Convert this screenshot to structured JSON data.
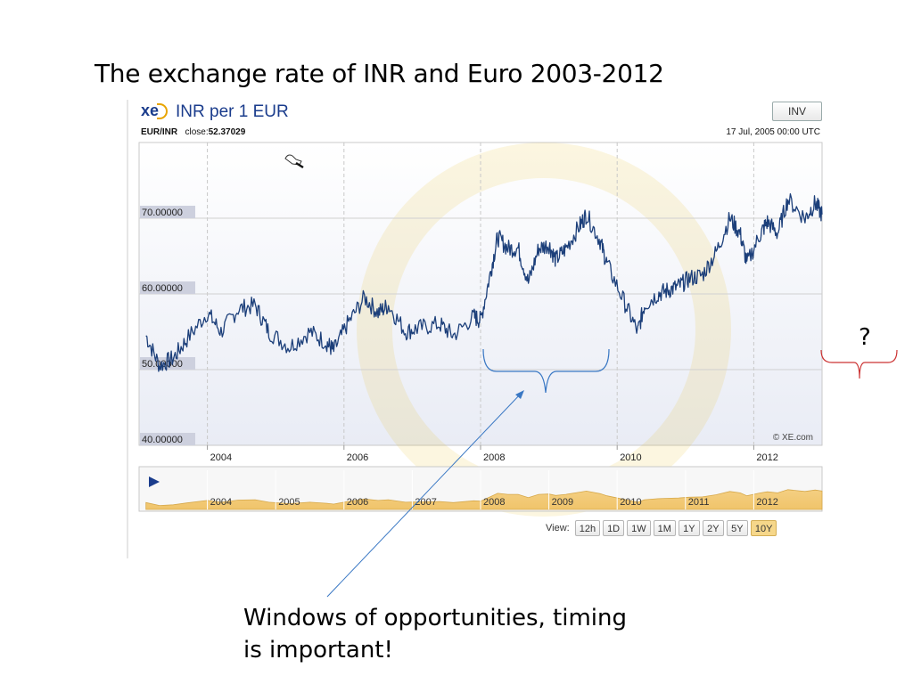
{
  "slide": {
    "title": "The exchange rate of INR and Euro 2003-2012",
    "caption_line1": "Windows of opportunities, timing",
    "caption_line2": "is important!",
    "question_mark": "?"
  },
  "widget": {
    "logo": "xe",
    "heading": "INR per 1 EUR",
    "inv_label": "INV",
    "pair": "EUR/INR",
    "close_label": "close:",
    "close_value": "52.37029",
    "date": "17 Jul, 2005 00:00 UTC",
    "copyright": "© XE.com",
    "view_label": "View:",
    "view_buttons": [
      "12h",
      "1D",
      "1W",
      "1M",
      "1Y",
      "2Y",
      "5Y",
      "10Y"
    ],
    "active_view": "10Y"
  },
  "chart_data": {
    "type": "line",
    "title": "INR per 1 EUR",
    "series": [
      {
        "name": "EUR/INR",
        "x": [
          2003.1,
          2003.3,
          2003.5,
          2003.7,
          2004.0,
          2004.2,
          2004.45,
          2004.7,
          2004.9,
          2005.2,
          2005.5,
          2005.75,
          2005.85,
          2006.05,
          2006.3,
          2006.5,
          2006.65,
          2006.9,
          2007.1,
          2007.4,
          2007.6,
          2007.9,
          2008.0,
          2008.15,
          2008.25,
          2008.4,
          2008.55,
          2008.7,
          2008.85,
          2009.0,
          2009.1,
          2009.25,
          2009.45,
          2009.55,
          2009.75,
          2009.85,
          2010.1,
          2010.3,
          2010.4,
          2010.6,
          2010.75,
          2010.9,
          2011.05,
          2011.25,
          2011.45,
          2011.65,
          2011.8,
          2011.9,
          2012.1,
          2012.2,
          2012.35,
          2012.5,
          2012.75,
          2012.9,
          2013.0
        ],
        "values": [
          54.5,
          50.5,
          51.5,
          54.0,
          57.5,
          55.0,
          58.0,
          58.5,
          55.0,
          53.0,
          55.0,
          53.5,
          52.5,
          56.0,
          59.5,
          57.5,
          58.5,
          55.0,
          55.5,
          56.0,
          54.5,
          57.0,
          56.5,
          63.0,
          67.5,
          66.0,
          66.0,
          61.5,
          66.0,
          66.5,
          64.5,
          66.0,
          69.0,
          70.5,
          67.0,
          64.0,
          59.0,
          55.0,
          58.5,
          60.0,
          60.5,
          61.0,
          62.0,
          62.5,
          65.5,
          70.0,
          68.0,
          64.0,
          68.0,
          69.5,
          68.0,
          72.5,
          70.0,
          72.0,
          70.5
        ]
      }
    ],
    "y_ticks": [
      "70.00000",
      "60.00000",
      "50.00000",
      "40.00000"
    ],
    "x_ticks": [
      "2004",
      "2006",
      "2008",
      "2010",
      "2012"
    ],
    "ylim": [
      40,
      80
    ],
    "xlim": [
      2003.0,
      2013.0
    ],
    "grid": true,
    "navigator": {
      "x_ticks": [
        "2004",
        "2005",
        "2006",
        "2007",
        "2008",
        "2009",
        "2010",
        "2011",
        "2012"
      ],
      "fill_color": "#f4cf82"
    },
    "line_color": "#1c3f7a",
    "annotations": {
      "bracket_color": "#3a78c4",
      "arrow_color": "#3a78c4",
      "right_bracket_color": "#cc3333"
    }
  }
}
